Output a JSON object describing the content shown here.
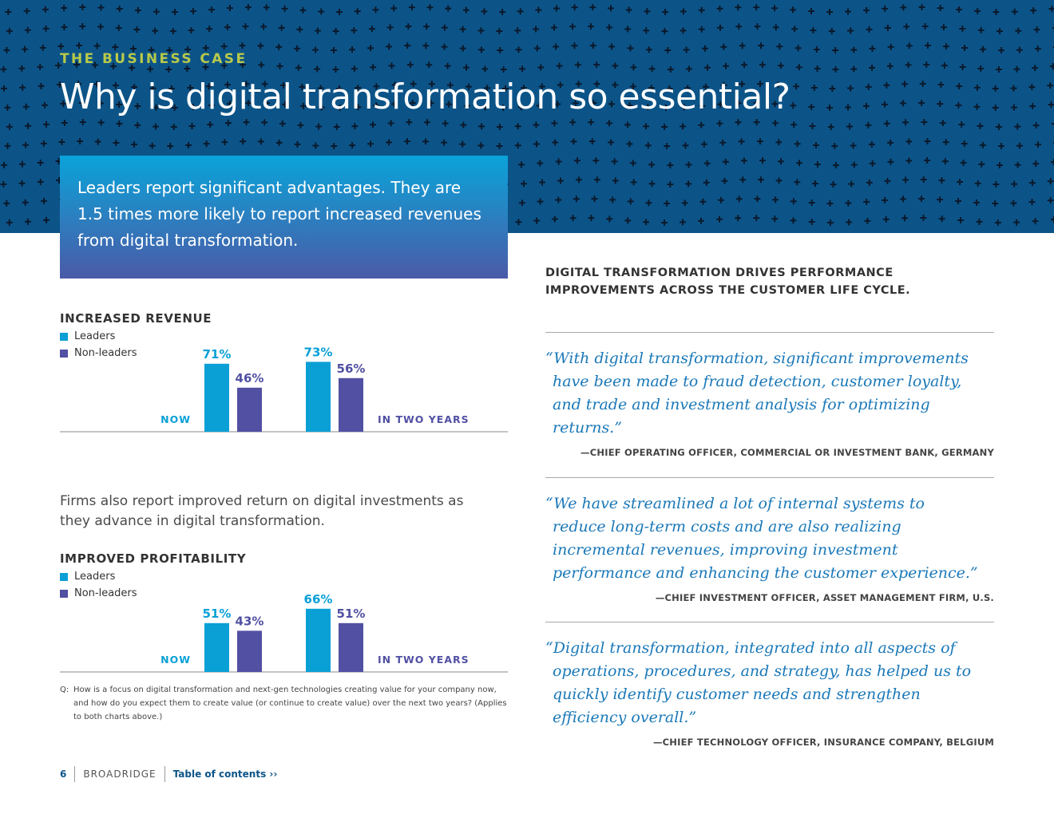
{
  "header": {
    "eyebrow": "THE BUSINESS CASE",
    "title": "Why is digital transformation so essential?"
  },
  "callout": {
    "text": "Leaders report significant advantages. They are 1.5 times more likely to report increased revenues from digital transformation."
  },
  "legend": {
    "leaders": "Leaders",
    "non_leaders": "Non-leaders"
  },
  "colors": {
    "leaders": "#0aa0d6",
    "non_leaders": "#5150a3",
    "title_blue": "#0c5488",
    "accent": "#b8c94a"
  },
  "body_text": "Firms also report improved return on digital investments as they advance in digital transformation.",
  "footnote": {
    "q": "Q:",
    "text": "How is a focus on digital transformation and next-gen technologies creating value for your company now, and how do you expect them to create value (or continue to create value) over the next two years? (Applies to both charts above.)"
  },
  "chart_data": [
    {
      "type": "bar",
      "title": "INCREASED REVENUE",
      "categories": [
        "NOW",
        "IN TWO YEARS"
      ],
      "series": [
        {
          "name": "Leaders",
          "values": [
            71,
            73
          ],
          "labels": [
            "71%",
            "73%"
          ]
        },
        {
          "name": "Non-leaders",
          "values": [
            46,
            56
          ],
          "labels": [
            "46%",
            "56%"
          ]
        }
      ],
      "ylim": [
        0,
        100
      ]
    },
    {
      "type": "bar",
      "title": "IMPROVED PROFITABILITY",
      "categories": [
        "NOW",
        "IN TWO YEARS"
      ],
      "series": [
        {
          "name": "Leaders",
          "values": [
            51,
            66
          ],
          "labels": [
            "51%",
            "66%"
          ]
        },
        {
          "name": "Non-leaders",
          "values": [
            43,
            51
          ],
          "labels": [
            "43%",
            "51%"
          ]
        }
      ],
      "ylim": [
        0,
        100
      ]
    }
  ],
  "right": {
    "heading": "DIGITAL TRANSFORMATION DRIVES PERFORMANCE IMPROVEMENTS ACROSS THE CUSTOMER LIFE CYCLE.",
    "quotes": [
      {
        "text": "“With digital transformation, significant improvements have been made to fraud detection, customer loyalty, and trade and investment analysis for optimizing returns.”",
        "attribution": "—CHIEF OPERATING OFFICER, COMMERCIAL OR INVESTMENT BANK, GERMANY"
      },
      {
        "text": "“We have streamlined a lot of internal systems to reduce long-term costs and are also realizing incremental revenues, improving investment performance and enhancing the customer experience.”",
        "attribution": "—CHIEF INVESTMENT OFFICER, ASSET MANAGEMENT FIRM, U.S."
      },
      {
        "text": "“Digital transformation, integrated into all aspects of operations, procedures, and strategy, has helped us to quickly identify customer needs and strengthen efficiency overall.”",
        "attribution": "—CHIEF TECHNOLOGY OFFICER, INSURANCE COMPANY, BELGIUM"
      }
    ]
  },
  "footer": {
    "page": "6",
    "brand": "BROADRIDGE",
    "toc": "Table of contents ››"
  }
}
